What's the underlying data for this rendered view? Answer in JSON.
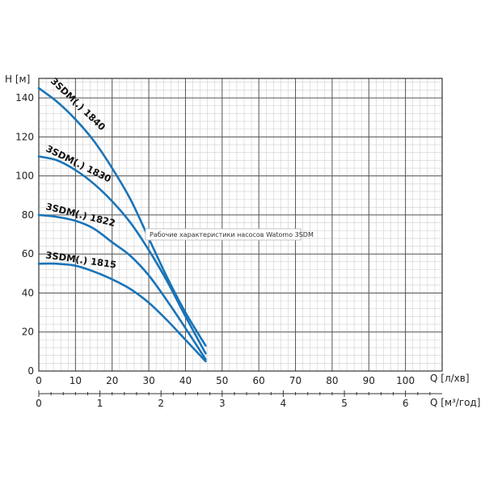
{
  "tooltip": "Рабочие характеристики насосов Watomo 3SDM",
  "chart_data": {
    "type": "line",
    "title": "",
    "ylabel": "H [м]",
    "xlabel": "Q [л/хв]",
    "x2label": "Q [м³/год]",
    "xlim": [
      0,
      110
    ],
    "ylim": [
      0,
      150
    ],
    "x_ticks": [
      0,
      10,
      20,
      30,
      40,
      50,
      60,
      70,
      80,
      90,
      100
    ],
    "y_ticks": [
      0,
      20,
      40,
      60,
      80,
      100,
      120,
      140
    ],
    "x2_ticks": [
      0,
      1,
      2,
      3,
      4,
      5,
      6
    ],
    "grid": true,
    "curve_color": "#1a74b8",
    "series": [
      {
        "name": "3SDM(.) 1840",
        "x": [
          0,
          5,
          10,
          15,
          20,
          25,
          30,
          35,
          40,
          45.5
        ],
        "y": [
          145,
          138,
          129,
          118,
          104,
          88,
          68,
          48,
          30,
          13
        ]
      },
      {
        "name": "3SDM(.) 1830",
        "x": [
          0,
          5,
          10,
          15,
          20,
          25,
          30,
          35,
          40,
          45.5
        ],
        "y": [
          110,
          108,
          103,
          96,
          87,
          76,
          62,
          46,
          28,
          9
        ]
      },
      {
        "name": "3SDM(.) 1822",
        "x": [
          0,
          5,
          10,
          15,
          20,
          25,
          30,
          35,
          40,
          45.5
        ],
        "y": [
          80,
          79,
          77,
          73,
          66,
          59,
          49,
          36,
          22,
          6
        ]
      },
      {
        "name": "3SDM(.) 1815",
        "x": [
          0,
          5,
          10,
          15,
          20,
          25,
          30,
          35,
          40,
          45.5
        ],
        "y": [
          55,
          55,
          54,
          51,
          47,
          42,
          35,
          26,
          16,
          5
        ]
      }
    ]
  }
}
